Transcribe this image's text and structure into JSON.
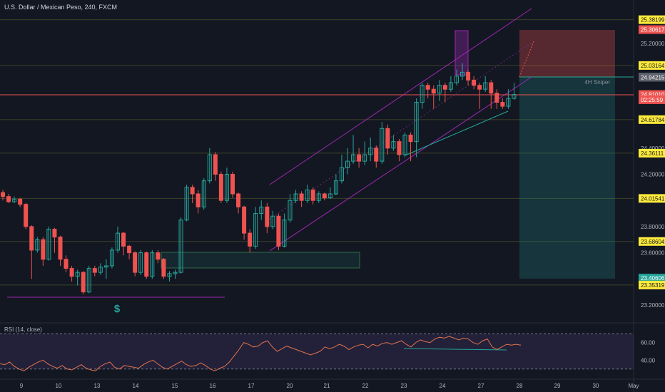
{
  "header": {
    "title": "U.S. Dollar / Mexican Peso, 240, FXCM"
  },
  "rsi": {
    "title": "RSI (14, close)",
    "ticks": [
      "60.00",
      "40.00"
    ],
    "upper": 70,
    "lower": 30,
    "values": [
      36,
      35,
      38,
      33,
      30,
      28,
      32,
      35,
      38,
      40,
      36,
      33,
      31,
      34,
      30,
      29,
      32,
      35,
      31,
      29,
      28,
      33,
      36,
      38,
      32,
      30,
      34,
      33,
      32,
      31,
      35,
      38,
      40,
      36,
      32,
      30,
      33,
      36,
      39,
      35,
      33,
      34,
      37,
      34,
      30,
      28,
      31,
      33,
      38,
      45,
      52,
      60,
      58,
      55,
      56,
      60,
      62,
      55,
      50,
      53,
      56,
      54,
      52,
      50,
      48,
      46,
      48,
      50,
      55,
      53,
      55,
      58,
      56,
      52,
      55,
      57,
      58,
      54,
      58,
      56,
      59,
      60,
      58,
      60,
      62,
      58,
      55,
      60,
      63,
      61,
      60,
      64,
      66,
      65,
      67,
      65,
      63,
      65,
      64,
      60,
      58,
      62,
      64,
      55,
      52,
      55,
      58,
      57,
      58,
      57
    ]
  },
  "price_axis": {
    "labels": [
      "25.20000",
      "24.40000",
      "24.20000",
      "23.80000",
      "23.60000",
      "23.20000"
    ]
  },
  "price_tags": [
    {
      "price": 25.38199,
      "label": "25.38199",
      "kind": "level"
    },
    {
      "price": 25.30617,
      "label": "25.30617",
      "kind": "red"
    },
    {
      "price": 25.03164,
      "label": "25.03164",
      "kind": "level"
    },
    {
      "price": 24.94267,
      "label": "24.94267",
      "kind": "blue"
    },
    {
      "price": 24.94215,
      "label": "24.94215",
      "kind": "grey"
    },
    {
      "price": 24.8101,
      "label": "24.81010",
      "kind": "red"
    },
    {
      "price": 24.77,
      "label": "02:25:59",
      "kind": "red"
    },
    {
      "price": 24.61784,
      "label": "24.61784",
      "kind": "level"
    },
    {
      "price": 24.36111,
      "label": "24.36111",
      "kind": "level"
    },
    {
      "price": 24.01541,
      "label": "24.01541",
      "kind": "level"
    },
    {
      "price": 23.68604,
      "label": "23.68604",
      "kind": "level"
    },
    {
      "price": 23.40606,
      "label": "23.40606",
      "kind": "green"
    },
    {
      "price": 23.35319,
      "label": "23.35319",
      "kind": "level"
    }
  ],
  "levels": [
    25.38199,
    25.03164,
    24.61784,
    24.36111,
    24.01541,
    23.68604,
    23.35319
  ],
  "time_axis": {
    "labels": [
      "9",
      "10",
      "13",
      "14",
      "15",
      "16",
      "17",
      "20",
      "21",
      "22",
      "23",
      "24",
      "27",
      "28",
      "29",
      "30",
      "May"
    ]
  },
  "annotations": {
    "sniper_label": "4H Sniper",
    "dollar_icon": "$"
  },
  "colors": {
    "bg": "#131722",
    "up": "#26a69a",
    "down": "#ef5350",
    "channel": "#9c27b0",
    "level": "#4a4f2a",
    "current": "#f05350",
    "tag_yellow": "#ffeb3b"
  },
  "candles": [
    [
      24.06,
      24.03,
      24.08,
      24.0
    ],
    [
      24.03,
      23.99,
      24.05,
      23.98
    ],
    [
      23.99,
      24.01,
      24.03,
      23.98
    ],
    [
      24.01,
      23.97,
      24.02,
      23.95
    ],
    [
      23.97,
      23.8,
      23.98,
      23.78
    ],
    [
      23.8,
      23.62,
      23.81,
      23.4
    ],
    [
      23.62,
      23.7,
      23.72,
      23.6
    ],
    [
      23.7,
      23.55,
      23.72,
      23.5
    ],
    [
      23.55,
      23.78,
      23.8,
      23.54
    ],
    [
      23.78,
      23.72,
      23.79,
      23.6
    ],
    [
      23.72,
      23.55,
      23.73,
      23.5
    ],
    [
      23.55,
      23.48,
      23.58,
      23.45
    ],
    [
      23.48,
      23.42,
      23.5,
      23.38
    ],
    [
      23.42,
      23.45,
      23.47,
      23.35
    ],
    [
      23.45,
      23.3,
      23.46,
      23.28
    ],
    [
      23.3,
      23.48,
      23.5,
      23.29
    ],
    [
      23.48,
      23.45,
      23.5,
      23.42
    ],
    [
      23.45,
      23.49,
      23.52,
      23.43
    ],
    [
      23.49,
      23.5,
      23.55,
      23.4
    ],
    [
      23.5,
      23.62,
      23.64,
      23.48
    ],
    [
      23.62,
      23.75,
      23.8,
      23.6
    ],
    [
      23.75,
      23.65,
      23.76,
      23.58
    ],
    [
      23.65,
      23.6,
      23.66,
      23.55
    ],
    [
      23.6,
      23.45,
      23.61,
      23.42
    ],
    [
      23.45,
      23.6,
      23.62,
      23.43
    ],
    [
      23.6,
      23.42,
      23.61,
      23.4
    ],
    [
      23.42,
      23.6,
      23.62,
      23.4
    ],
    [
      23.6,
      23.55,
      23.62,
      23.52
    ],
    [
      23.55,
      23.42,
      23.56,
      23.4
    ],
    [
      23.42,
      23.44,
      23.46,
      23.38
    ],
    [
      23.44,
      23.45,
      23.47,
      23.4
    ],
    [
      23.45,
      23.85,
      23.87,
      23.44
    ],
    [
      23.85,
      24.1,
      24.12,
      23.84
    ],
    [
      24.1,
      24.05,
      24.12,
      23.98
    ],
    [
      24.05,
      23.95,
      24.08,
      23.9
    ],
    [
      23.95,
      24.15,
      24.17,
      23.93
    ],
    [
      24.15,
      24.35,
      24.4,
      24.13
    ],
    [
      24.35,
      24.2,
      24.37,
      24.15
    ],
    [
      24.2,
      24.0,
      24.22,
      23.98
    ],
    [
      24.0,
      24.2,
      24.25,
      23.98
    ],
    [
      24.2,
      24.05,
      24.22,
      24.02
    ],
    [
      24.05,
      23.95,
      24.06,
      23.9
    ],
    [
      23.95,
      23.75,
      23.96,
      23.7
    ],
    [
      23.75,
      23.65,
      23.78,
      23.6
    ],
    [
      23.65,
      23.9,
      23.95,
      23.63
    ],
    [
      23.9,
      23.95,
      24.0,
      23.85
    ],
    [
      23.95,
      23.8,
      23.98,
      23.75
    ],
    [
      23.8,
      23.88,
      23.92,
      23.78
    ],
    [
      23.88,
      23.65,
      23.9,
      23.62
    ],
    [
      23.65,
      23.85,
      23.9,
      23.64
    ],
    [
      23.85,
      24.0,
      24.05,
      23.83
    ],
    [
      24.0,
      24.05,
      24.08,
      23.98
    ],
    [
      24.05,
      24.0,
      24.07,
      23.95
    ],
    [
      24.0,
      24.08,
      24.12,
      23.98
    ],
    [
      24.08,
      24.0,
      24.1,
      23.97
    ],
    [
      24.0,
      24.05,
      24.07,
      23.98
    ],
    [
      24.05,
      24.02,
      24.06,
      24.0
    ],
    [
      24.02,
      24.05,
      24.1,
      24.01
    ],
    [
      24.05,
      24.15,
      24.2,
      24.04
    ],
    [
      24.15,
      24.25,
      24.35,
      24.13
    ],
    [
      24.25,
      24.3,
      24.4,
      24.2
    ],
    [
      24.3,
      24.35,
      24.5,
      24.28
    ],
    [
      24.35,
      24.3,
      24.4,
      24.25
    ],
    [
      24.3,
      24.35,
      24.45,
      24.27
    ],
    [
      24.35,
      24.4,
      24.48,
      24.3
    ],
    [
      24.4,
      24.3,
      24.42,
      24.25
    ],
    [
      24.3,
      24.55,
      24.6,
      24.28
    ],
    [
      24.55,
      24.4,
      24.58,
      24.35
    ],
    [
      24.4,
      24.45,
      24.5,
      24.38
    ],
    [
      24.45,
      24.35,
      24.47,
      24.3
    ],
    [
      24.35,
      24.5,
      24.52,
      24.33
    ],
    [
      24.5,
      24.45,
      24.52,
      24.3
    ],
    [
      24.45,
      24.75,
      24.78,
      24.33
    ],
    [
      24.75,
      24.88,
      24.9,
      24.7
    ],
    [
      24.88,
      24.85,
      24.9,
      24.78
    ],
    [
      24.85,
      24.82,
      24.88,
      24.7
    ],
    [
      24.82,
      24.88,
      24.92,
      24.76
    ],
    [
      24.88,
      24.85,
      24.9,
      24.75
    ],
    [
      24.85,
      24.9,
      24.95,
      24.83
    ],
    [
      24.9,
      24.95,
      25.0,
      24.88
    ],
    [
      24.95,
      24.98,
      25.05,
      24.92
    ],
    [
      24.98,
      24.92,
      25.0,
      24.88
    ],
    [
      24.92,
      24.88,
      24.95,
      24.85
    ],
    [
      24.88,
      24.85,
      24.9,
      24.7
    ],
    [
      24.85,
      24.9,
      24.95,
      24.83
    ],
    [
      24.9,
      24.82,
      24.92,
      24.7
    ],
    [
      24.82,
      24.75,
      24.85,
      24.7
    ],
    [
      24.75,
      24.72,
      24.78,
      24.7
    ],
    [
      24.72,
      24.78,
      24.85,
      24.7
    ],
    [
      24.78,
      24.81,
      24.9,
      24.77
    ]
  ]
}
